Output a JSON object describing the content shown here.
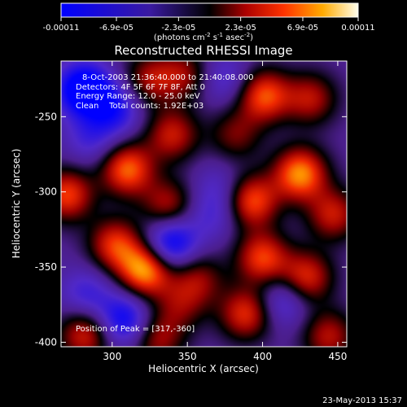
{
  "chart_data": {
    "type": "heatmap",
    "title": "Reconstructed RHESSI Image",
    "xlabel": "Heliocentric X (arcsec)",
    "ylabel": "Heliocentric Y (arcsec)",
    "xlim": [
      266,
      456
    ],
    "ylim": [
      -403,
      -213
    ],
    "xticks": [
      300,
      350,
      400,
      450
    ],
    "yticks": [
      -250,
      -300,
      -350,
      -400
    ],
    "annotations": [
      "8-Oct-2003 21:36:40.000 to 21:40:08.000",
      "Detectors: 4F 5F 6F 7F 8F, Att 0",
      "Energy Range: 12.0 - 25.0 keV",
      "Clean    Total counts: 1.92E+03"
    ],
    "peak_label": "Position of Peak = [317,-360]",
    "peak": [
      317,
      -360
    ],
    "colorbar": {
      "min": -0.00011,
      "max": 0.00011,
      "tick_labels": [
        "-0.00011",
        "-6.9e-05",
        "-2.3e-05",
        "2.3e-05",
        "6.9e-05",
        "0.00011"
      ],
      "tick_values": [
        -0.00011,
        -6.9e-05,
        -2.3e-05,
        2.3e-05,
        6.9e-05,
        0.00011
      ],
      "unit_label": "(photons cm",
      "unit_exp1": "-2",
      "unit_mid": " s",
      "unit_exp2": "-1",
      "unit_tail": " asec",
      "unit_exp3": "-2",
      "unit_close": ")"
    },
    "sources": [
      {
        "x": 281,
        "y": -232,
        "v": -1.0
      },
      {
        "x": 302,
        "y": -245,
        "v": -0.55
      },
      {
        "x": 325,
        "y": -225,
        "v": 0.55
      },
      {
        "x": 348,
        "y": -222,
        "v": 0.5
      },
      {
        "x": 375,
        "y": -225,
        "v": -0.35
      },
      {
        "x": 401,
        "y": -236,
        "v": 0.85
      },
      {
        "x": 432,
        "y": -238,
        "v": 0.6
      },
      {
        "x": 286,
        "y": -265,
        "v": -0.35
      },
      {
        "x": 310,
        "y": -285,
        "v": 0.9
      },
      {
        "x": 340,
        "y": -262,
        "v": 0.65
      },
      {
        "x": 382,
        "y": -262,
        "v": 0.45
      },
      {
        "x": 425,
        "y": -288,
        "v": 1.0
      },
      {
        "x": 270,
        "y": -302,
        "v": 0.8
      },
      {
        "x": 337,
        "y": -309,
        "v": 0.6
      },
      {
        "x": 372,
        "y": -297,
        "v": -0.25
      },
      {
        "x": 393,
        "y": -306,
        "v": 0.85
      },
      {
        "x": 302,
        "y": -335,
        "v": 0.75
      },
      {
        "x": 339,
        "y": -334,
        "v": -0.8
      },
      {
        "x": 400,
        "y": -344,
        "v": 0.8
      },
      {
        "x": 447,
        "y": -315,
        "v": 0.65
      },
      {
        "x": 322,
        "y": -352,
        "v": 1.05
      },
      {
        "x": 283,
        "y": -368,
        "v": -0.4
      },
      {
        "x": 357,
        "y": -358,
        "v": 0.5
      },
      {
        "x": 429,
        "y": -357,
        "v": 0.75
      },
      {
        "x": 308,
        "y": -385,
        "v": -0.7
      },
      {
        "x": 345,
        "y": -376,
        "v": 0.4
      },
      {
        "x": 414,
        "y": -372,
        "v": -0.45
      },
      {
        "x": 389,
        "y": -381,
        "v": 0.75
      },
      {
        "x": 282,
        "y": -395,
        "v": 0.7
      },
      {
        "x": 330,
        "y": -398,
        "v": 0.55
      },
      {
        "x": 444,
        "y": -396,
        "v": 0.6
      },
      {
        "x": 367,
        "y": -315,
        "v": -0.3
      }
    ],
    "grid": false,
    "legend": "colorbar-top"
  },
  "footer": {
    "timestamp": "23-May-2013 15:37"
  }
}
